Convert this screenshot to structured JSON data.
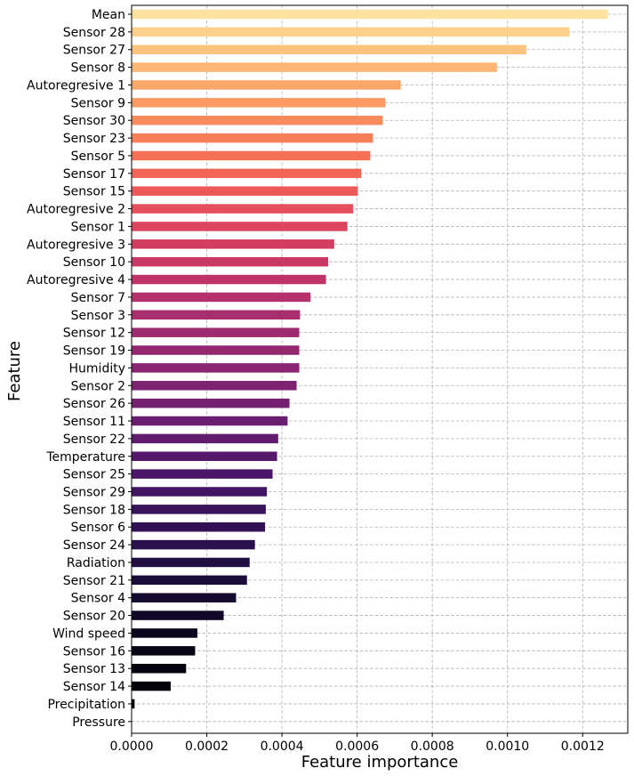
{
  "chart_data": {
    "type": "bar",
    "orientation": "horizontal",
    "xlabel": "Feature importance",
    "ylabel": "Feature",
    "xlim": [
      0,
      0.00132
    ],
    "xticks": [
      0,
      0.0002,
      0.0004,
      0.0006,
      0.0008,
      0.001,
      0.0012
    ],
    "xtick_labels": [
      "0.0000",
      "0.0002",
      "0.0004",
      "0.0006",
      "0.0008",
      "0.0010",
      "0.0012"
    ],
    "grid": true,
    "categories": [
      "Mean",
      "Sensor 28",
      "Sensor 27",
      "Sensor 8",
      "Autoregresive 1",
      "Sensor 9",
      "Sensor 30",
      "Sensor 23",
      "Sensor 5",
      "Sensor 17",
      "Sensor 15",
      "Autoregresive 2",
      "Sensor 1",
      "Autoregresive 3",
      "Sensor 10",
      "Autoregresive 4",
      "Sensor 7",
      "Sensor 3",
      "Sensor 12",
      "Sensor 19",
      "Humidity",
      "Sensor 2",
      "Sensor 26",
      "Sensor 11",
      "Sensor 22",
      "Temperature",
      "Sensor 25",
      "Sensor 29",
      "Sensor 18",
      "Sensor 6",
      "Sensor 24",
      "Radiation",
      "Sensor 21",
      "Sensor 4",
      "Sensor 20",
      "Wind speed",
      "Sensor 16",
      "Sensor 13",
      "Sensor 14",
      "Precipitation",
      "Pressure"
    ],
    "values": [
      0.001267,
      0.001164,
      0.00105,
      0.000972,
      0.000716,
      0.000675,
      0.000668,
      0.000642,
      0.000635,
      0.000611,
      0.000602,
      0.000589,
      0.000574,
      0.000539,
      0.000523,
      0.000517,
      0.000476,
      0.000448,
      0.000446,
      0.000446,
      0.000446,
      0.000439,
      0.00042,
      0.000415,
      0.00039,
      0.000387,
      0.000375,
      0.00036,
      0.000357,
      0.000355,
      0.000328,
      0.000314,
      0.000307,
      0.000278,
      0.000245,
      0.000175,
      0.000169,
      0.000145,
      0.000104,
      8e-06,
      0.0
    ],
    "colormap": "magma",
    "colors": [
      "#fde2a0",
      "#fdd08c",
      "#fcc37f",
      "#fcb574",
      "#fca76a",
      "#fb9a62",
      "#f98b5c",
      "#f77e58",
      "#f47156",
      "#f06556",
      "#eb5958",
      "#e54e5b",
      "#dd445e",
      "#d43d62",
      "#ca3866",
      "#bf3468",
      "#b4316b",
      "#a92e6d",
      "#9e2b6f",
      "#932871",
      "#892572",
      "#7e2372",
      "#742071",
      "#691e70",
      "#5f1b6e",
      "#55186b",
      "#4b1667",
      "#421562",
      "#39135b",
      "#311154",
      "#290f4c",
      "#220e43",
      "#1b0c39",
      "#150a2f",
      "#100826",
      "#0b061d",
      "#080515",
      "#05030e",
      "#030208",
      "#010104",
      "#000004"
    ]
  }
}
